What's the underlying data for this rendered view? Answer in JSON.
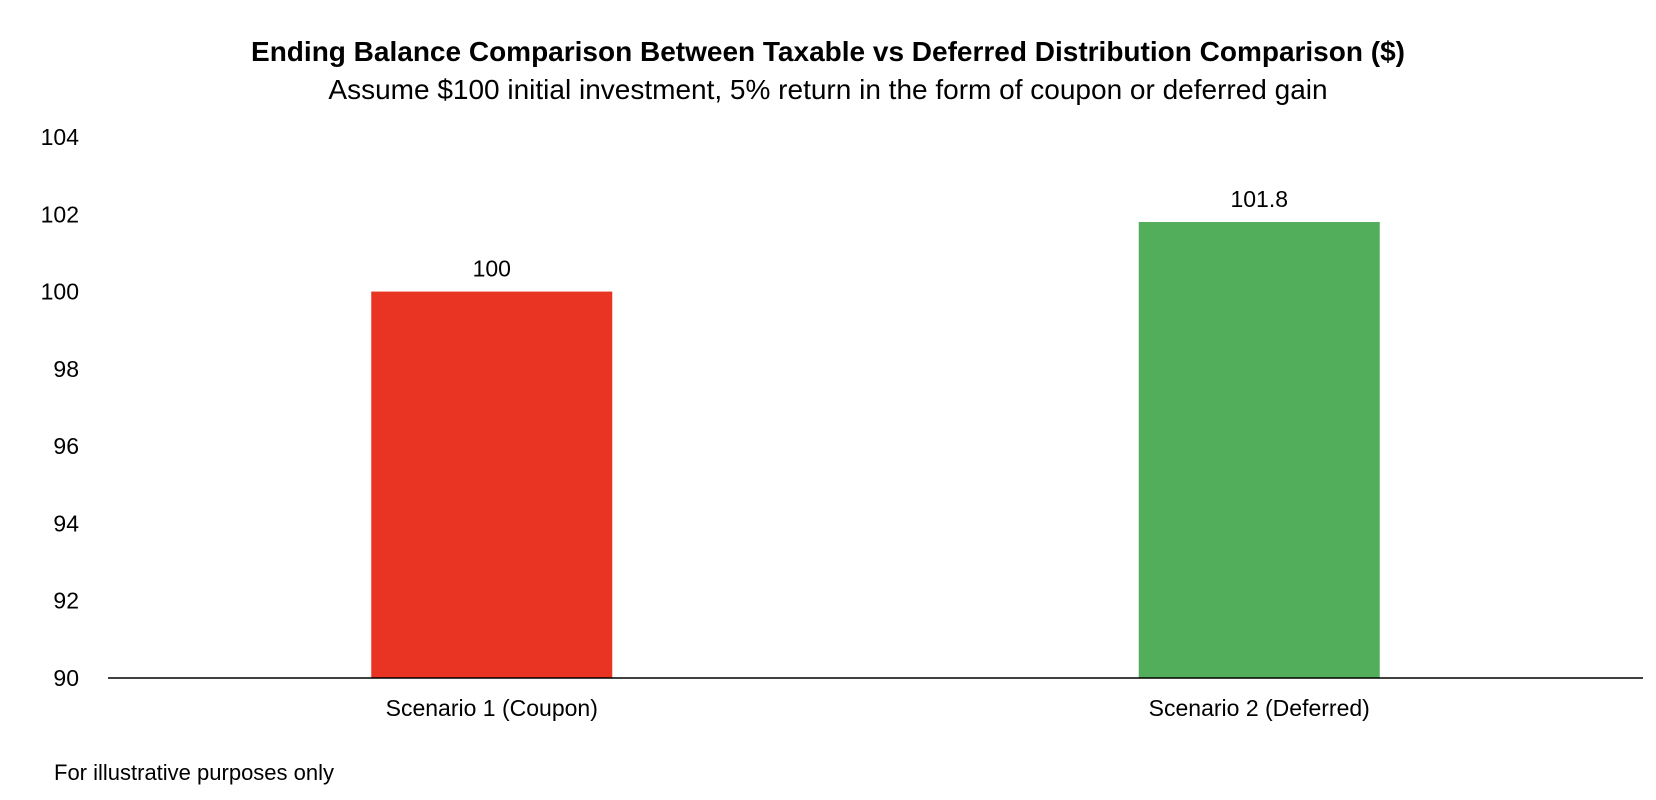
{
  "chart_data": {
    "type": "bar",
    "title": "Ending Balance Comparison Between Taxable vs Deferred Distribution Comparison ($)",
    "subtitle": "Assume $100 initial investment, 5% return in the form of coupon or deferred gain",
    "xlabel": "",
    "ylabel": "",
    "categories": [
      "Scenario 1 (Coupon)",
      "Scenario 2 (Deferred)"
    ],
    "values": [
      100,
      101.8
    ],
    "data_labels": [
      "100",
      "101.8"
    ],
    "colors": [
      "#E93323",
      "#52AE5B"
    ],
    "ylim": [
      90,
      104
    ],
    "yticks": [
      90,
      92,
      94,
      96,
      98,
      100,
      102,
      104
    ],
    "grid": false,
    "legend": "none"
  },
  "footnote": "For illustrative purposes only"
}
